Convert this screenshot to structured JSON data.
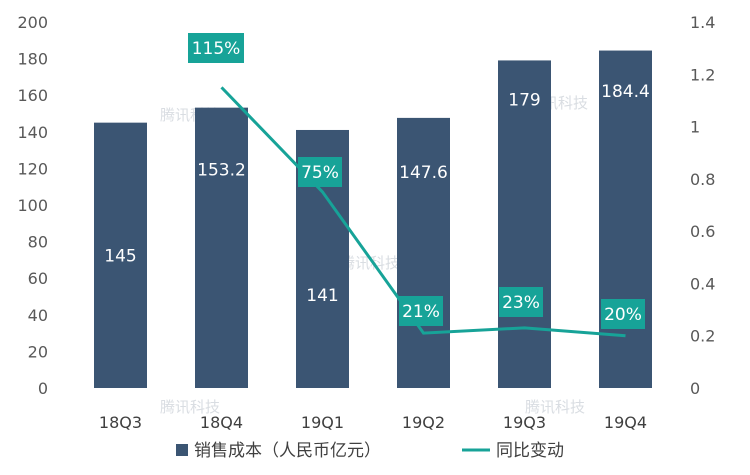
{
  "watermark": "腾讯科技",
  "chart_data": {
    "type": "bar",
    "categories": [
      "18Q3",
      "18Q4",
      "19Q1",
      "19Q2",
      "19Q3",
      "19Q4"
    ],
    "series": [
      {
        "name": "销售成本（人民币亿元）",
        "type": "bar",
        "axis": "left",
        "values": [
          145,
          153.2,
          141,
          147.6,
          179,
          184.4
        ],
        "labels": [
          "145",
          "153.2",
          "141",
          "147.6",
          "179",
          "184.4"
        ],
        "color": "#3b5573"
      },
      {
        "name": "同比变动",
        "type": "line",
        "axis": "right",
        "points": [
          {
            "category": "18Q4",
            "value": 1.15,
            "label": "115%"
          },
          {
            "category": "19Q1",
            "value": 0.75,
            "label": "75%"
          },
          {
            "category": "19Q2",
            "value": 0.21,
            "label": "21%"
          },
          {
            "category": "19Q3",
            "value": 0.23,
            "label": "23%"
          },
          {
            "category": "19Q4",
            "value": 0.2,
            "label": "20%"
          }
        ],
        "color": "#17a398"
      }
    ],
    "yleft": {
      "min": 0,
      "max": 200,
      "ticks": [
        "0",
        "20",
        "40",
        "60",
        "80",
        "100",
        "120",
        "140",
        "160",
        "180",
        "200"
      ]
    },
    "yright": {
      "min": 0,
      "max": 1.4,
      "ticks": [
        "0",
        "0.2",
        "0.4",
        "0.6",
        "0.8",
        "1",
        "1.2",
        "1.4"
      ]
    },
    "grid": false,
    "legend": "bottom-center"
  }
}
